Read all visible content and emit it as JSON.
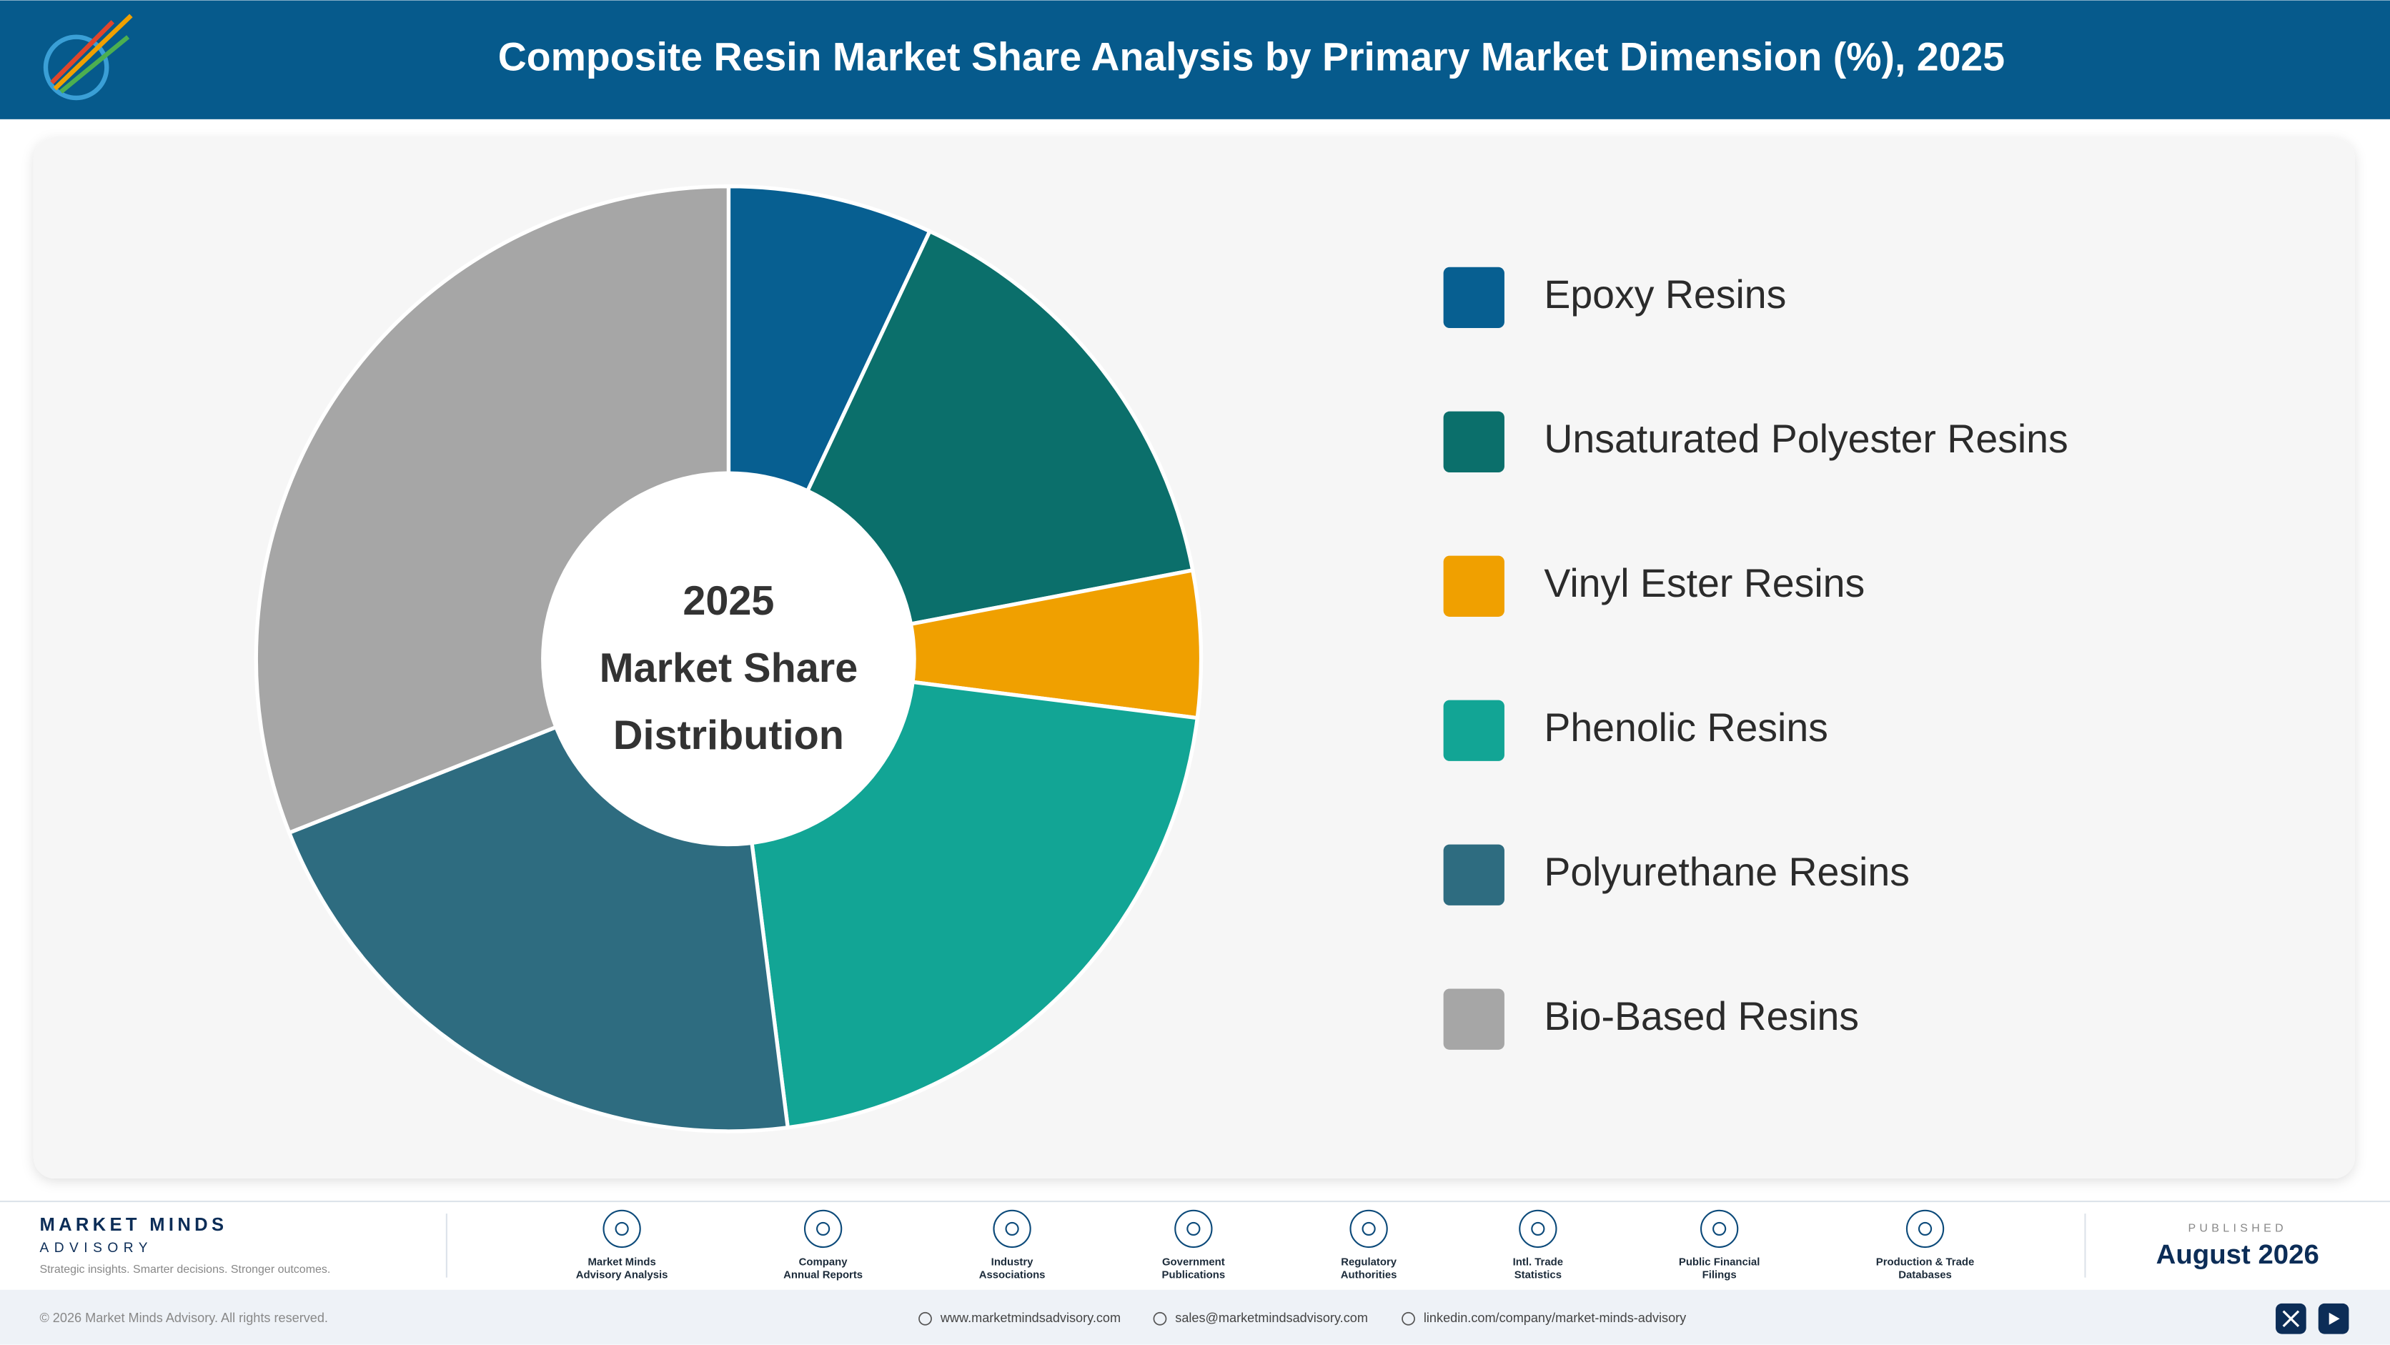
{
  "header": {
    "title": "Composite Resin Market Share Analysis by Primary Market Dimension (%), 2025"
  },
  "chart_data": {
    "type": "pie",
    "center_label": [
      "2025",
      "Market Share",
      "Distribution"
    ],
    "categories": [
      "Epoxy Resins",
      "Unsaturated Polyester Resins",
      "Vinyl Ester Resins",
      "Phenolic Resins",
      "Polyurethane Resins",
      "Bio-Based Resins"
    ],
    "values": [
      7,
      15,
      5,
      21,
      21,
      31
    ],
    "colors": [
      "#075f91",
      "#0b6f6b",
      "#f0a000",
      "#12a595",
      "#2e6c80",
      "#a6a6a6"
    ]
  },
  "footer": {
    "brand": "MARKET MINDS",
    "brand_sub": "ADVISORY",
    "tagline": "Strategic insights. Smarter decisions. Stronger outcomes.",
    "sources": [
      [
        "Market Minds",
        "Advisory Analysis"
      ],
      [
        "Company",
        "Annual Reports"
      ],
      [
        "Industry",
        "Associations"
      ],
      [
        "Government",
        "Publications"
      ],
      [
        "Regulatory",
        "Authorities"
      ],
      [
        "Intl. Trade",
        "Statistics"
      ],
      [
        "Public Financial",
        "Filings"
      ],
      [
        "Production & Trade",
        "Databases"
      ]
    ],
    "published_label": "PUBLISHED",
    "published_date": "August 2026",
    "copyright": "© 2026 Market Minds Advisory. All rights reserved.",
    "links": [
      "www.marketmindsadvisory.com",
      "sales@marketmindsadvisory.com",
      "linkedin.com/company/market-minds-advisory"
    ]
  }
}
